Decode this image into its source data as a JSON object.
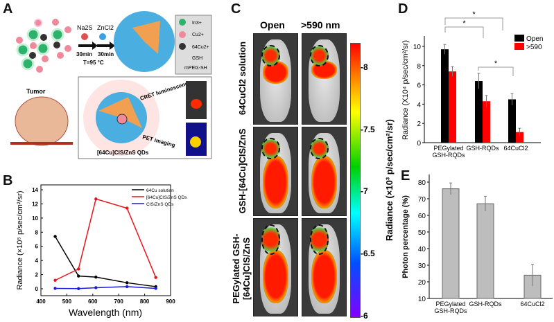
{
  "panels": {
    "a": "A",
    "b": "B",
    "c": "C",
    "d": "D",
    "e": "E"
  },
  "panel_a": {
    "reagent1": "Na2S",
    "reagent2": "ZnCl2",
    "time1": "30min",
    "time2": "30min",
    "temp": "T=95 °C",
    "legend": [
      "In3+",
      "Cu2+",
      "64Cu2+",
      "GSH",
      "mPEG-SH"
    ],
    "tumor": "Tumor",
    "cret": "CRET luminescence",
    "pet": "PET imaging",
    "qd": "[64Cu]CIS/ZnS QDs",
    "colors": {
      "in": "#2db36b",
      "cu": "#f08a9a",
      "shell": "#4aaee0",
      "core": "#f0a050"
    }
  },
  "panel_c": {
    "col_headers": [
      "Open",
      ">590 nm"
    ],
    "row_labels": [
      "64CuCl2 solution",
      "GSH-[64Cu]CIS/ZnS",
      "PEGylated GSH-[64Cu]CIS/ZnS"
    ],
    "colorbar": {
      "label": "Radiance (×10³ p/sec/cm²/sr)",
      "ticks": [
        "8",
        "7.5",
        "7",
        "6.5",
        "6"
      ],
      "range": [
        6,
        8.2
      ],
      "colormap": "rainbow"
    }
  },
  "chart_data": [
    {
      "id": "B",
      "type": "line",
      "xlabel": "Wavelength (nm)",
      "ylabel": "Radiance (×10⁵ p/sec/cm²/sr)",
      "xlim": [
        400,
        900
      ],
      "ylim": [
        -1,
        14
      ],
      "xticks": [
        "400",
        "500",
        "600",
        "700",
        "800",
        "900"
      ],
      "yticks": [
        "0",
        "2",
        "4",
        "6",
        "8",
        "10",
        "12",
        "14"
      ],
      "legend_position": "top-right",
      "grid": false,
      "x": [
        455,
        545,
        612,
        732,
        843
      ],
      "series": [
        {
          "name": "64Cu solution",
          "color": "#000000",
          "marker": "square",
          "values": [
            7.4,
            1.8,
            1.65,
            0.85,
            0.3
          ]
        },
        {
          "name": "[64Cu]CIS/ZnS QDs",
          "color": "#e8141c",
          "marker": "circle",
          "values": [
            1.2,
            2.8,
            12.7,
            11.4,
            1.6
          ]
        },
        {
          "name": "CIS/ZnS QDs",
          "color": "#1a1adc",
          "marker": "triangle",
          "values": [
            0.05,
            0.02,
            0.15,
            0.3,
            0.05
          ]
        }
      ]
    },
    {
      "id": "D",
      "type": "bar",
      "ylabel": "Radiance (X10⁴ p/sec/cm²/sr)",
      "ylim": [
        0,
        11
      ],
      "yticks": [
        "0",
        "2",
        "4",
        "6",
        "8",
        "10"
      ],
      "categories": [
        "PEGylated GSH-RQDs",
        "GSH-RQDs",
        "64CuCl2"
      ],
      "legend_position": "top-right",
      "significance": "*",
      "series": [
        {
          "name": "Open",
          "color": "#000000",
          "values": [
            9.7,
            6.4,
            4.5
          ],
          "errors": [
            0.5,
            0.8,
            0.6
          ]
        },
        {
          "name": ">590",
          "color": "#ff0000",
          "values": [
            7.4,
            4.3,
            1.1
          ],
          "errors": [
            0.5,
            0.6,
            0.4
          ]
        }
      ]
    },
    {
      "id": "E",
      "type": "bar",
      "ylabel": "Photon percentage (%)",
      "ylim": [
        10,
        85
      ],
      "yticks": [
        "10",
        "20",
        "30",
        "40",
        "50",
        "60",
        "70",
        "80"
      ],
      "categories": [
        "PEGylated GSH-RQDs",
        "GSH-RQDs",
        "64CuCl2"
      ],
      "series": [
        {
          "color": "#bdbdbd",
          "values": [
            76,
            67,
            24
          ],
          "errors": [
            3.5,
            4.5,
            6.5
          ]
        }
      ]
    }
  ]
}
